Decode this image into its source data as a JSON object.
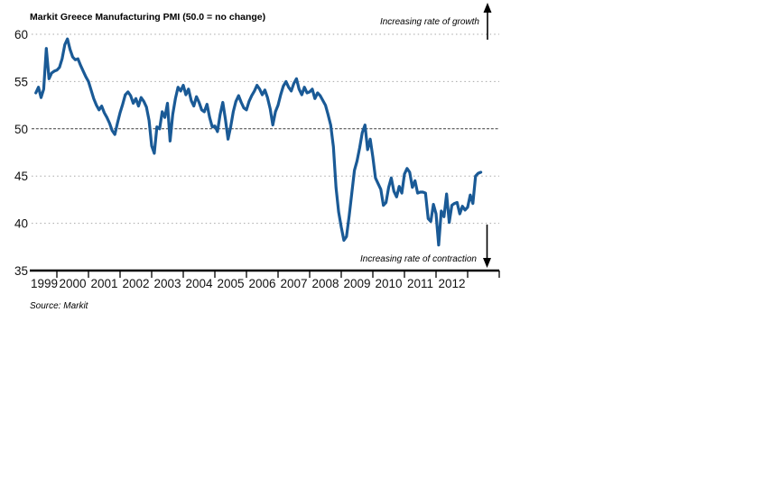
{
  "chart_data": {
    "type": "line",
    "title": "Markit Greece Manufacturing PMI (50.0 = no change)",
    "source": "Source: Markit",
    "annotations": {
      "top_right": "Increasing rate of growth",
      "bottom_right": "Increasing rate of contraction"
    },
    "frequency": "monthly",
    "x_start_month": "1999-05",
    "x_end_month": "2013-06",
    "x_tick_labels": [
      "1999",
      "2000",
      "2001",
      "2002",
      "2003",
      "2004",
      "2005",
      "2006",
      "2007",
      "2008",
      "2009",
      "2010",
      "2011",
      "2012"
    ],
    "y_ticks": [
      60,
      55,
      50,
      45,
      40,
      35
    ],
    "ylim": [
      35,
      60
    ],
    "grid_values": [
      60,
      55,
      45,
      40
    ],
    "reference_line_value": 50,
    "line_color": "#1a5a96",
    "series": [
      {
        "name": "Markit Greece Manufacturing PMI",
        "values": [
          53.8,
          54.4,
          53.3,
          54.2,
          58.5,
          55.3,
          55.9,
          56.1,
          56.2,
          56.5,
          57.4,
          58.9,
          59.5,
          58.4,
          57.6,
          57.3,
          57.4,
          56.7,
          56.1,
          55.5,
          55.0,
          54.1,
          53.2,
          52.5,
          52.0,
          52.4,
          51.7,
          51.2,
          50.6,
          49.8,
          49.4,
          50.6,
          51.7,
          52.6,
          53.6,
          53.9,
          53.5,
          52.7,
          53.2,
          52.4,
          53.3,
          52.9,
          52.3,
          50.9,
          48.2,
          47.4,
          50.2,
          50.0,
          51.8,
          51.2,
          52.7,
          48.7,
          51.5,
          53.2,
          54.4,
          54.0,
          54.6,
          53.6,
          54.2,
          53.0,
          52.4,
          53.4,
          52.8,
          52.0,
          51.8,
          52.6,
          51.2,
          50.2,
          50.3,
          49.7,
          51.5,
          52.8,
          51.0,
          48.9,
          50.2,
          51.8,
          52.9,
          53.5,
          52.8,
          52.2,
          52.0,
          52.9,
          53.5,
          54.0,
          54.6,
          54.2,
          53.6,
          54.1,
          53.3,
          52.1,
          50.4,
          51.8,
          52.5,
          53.6,
          54.5,
          55.0,
          54.4,
          54.0,
          54.8,
          55.3,
          54.2,
          53.6,
          54.4,
          53.8,
          53.9,
          54.2,
          53.2,
          53.8,
          53.5,
          53.0,
          52.5,
          51.5,
          50.4,
          48.1,
          43.8,
          41.2,
          39.6,
          38.2,
          38.6,
          40.8,
          43.2,
          45.6,
          46.6,
          48.0,
          49.6,
          50.4,
          47.8,
          48.9,
          47.0,
          44.8,
          44.2,
          43.6,
          41.9,
          42.2,
          43.8,
          44.8,
          43.4,
          42.8,
          43.9,
          43.2,
          45.2,
          45.8,
          45.4,
          43.8,
          44.5,
          43.2,
          43.3,
          43.3,
          43.2,
          40.5,
          40.2,
          42.0,
          41.0,
          37.7,
          41.3,
          40.7,
          43.1,
          40.1,
          41.9,
          42.1,
          42.2,
          41.0,
          41.8,
          41.4,
          41.7,
          43.0,
          42.1,
          45.0,
          45.3,
          45.4
        ]
      }
    ]
  }
}
